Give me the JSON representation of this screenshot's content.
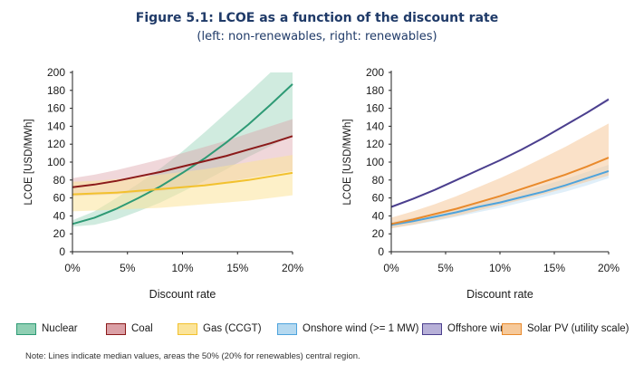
{
  "figure": {
    "title": "Figure 5.1: LCOE as a function of the discount rate",
    "subtitle": "(left: non-renewables, right: renewables)"
  },
  "chart_data": [
    {
      "type": "area",
      "xlabel": "Discount rate",
      "ylabel": "LCOE [USD/MWh]",
      "x": [
        0,
        2,
        4,
        6,
        8,
        10,
        12,
        14,
        16,
        18,
        20
      ],
      "xlim": [
        0,
        20
      ],
      "ylim": [
        0,
        200
      ],
      "xticks": [
        "0%",
        "5%",
        "10%",
        "15%",
        "20%"
      ],
      "yticks": [
        "0",
        "20",
        "40",
        "60",
        "80",
        "100",
        "120",
        "140",
        "160",
        "180",
        "200"
      ],
      "grid": false,
      "series": [
        {
          "name": "Nuclear",
          "color": "#2e9a75",
          "fill": "#8fcfb3",
          "median": [
            31,
            38,
            48,
            60,
            73,
            88,
            104,
            122,
            142,
            164,
            187
          ],
          "low": [
            28,
            30,
            36,
            45,
            55,
            67,
            79,
            92,
            106,
            118,
            130
          ],
          "high": [
            35,
            45,
            60,
            76,
            93,
            112,
            133,
            155,
            177,
            200,
            200
          ]
        },
        {
          "name": "Coal",
          "color": "#8b1a1a",
          "fill": "#dba0a6",
          "median": [
            72,
            75,
            79,
            84,
            89,
            95,
            101,
            107,
            114,
            121,
            129
          ],
          "low": [
            62,
            63,
            64,
            66,
            68,
            71,
            74,
            78,
            82,
            86,
            90
          ],
          "high": [
            82,
            86,
            91,
            97,
            103,
            110,
            117,
            124,
            132,
            140,
            148
          ]
        },
        {
          "name": "Gas (CCGT)",
          "color": "#f2c12e",
          "fill": "#fbe49a",
          "median": [
            64,
            65,
            66,
            68,
            70,
            72,
            74,
            77,
            80,
            84,
            88
          ],
          "low": [
            45,
            46,
            47,
            48,
            49,
            51,
            53,
            55,
            57,
            60,
            63
          ],
          "high": [
            78,
            79,
            81,
            83,
            86,
            89,
            92,
            96,
            100,
            104,
            108
          ]
        }
      ]
    },
    {
      "type": "area",
      "xlabel": "Discount rate",
      "ylabel": "LCOE [USD/MWh]",
      "x": [
        0,
        2,
        4,
        6,
        8,
        10,
        12,
        14,
        16,
        18,
        20
      ],
      "xlim": [
        0,
        20
      ],
      "ylim": [
        0,
        200
      ],
      "xticks": [
        "0%",
        "5%",
        "10%",
        "15%",
        "20%"
      ],
      "yticks": [
        "0",
        "20",
        "40",
        "60",
        "80",
        "100",
        "120",
        "140",
        "160",
        "180",
        "200"
      ],
      "grid": false,
      "series": [
        {
          "name": "Onshore wind (>= 1 MW)",
          "color": "#4ea3dc",
          "fill": "#b5d9f0",
          "median": [
            30,
            34,
            39,
            44,
            50,
            55,
            61,
            67,
            74,
            82,
            90
          ],
          "low": [
            27,
            30,
            34,
            39,
            44,
            49,
            55,
            61,
            67,
            74,
            82
          ],
          "high": [
            33,
            38,
            43,
            49,
            55,
            61,
            67,
            74,
            81,
            89,
            97
          ]
        },
        {
          "name": "Offshore wind",
          "color": "#4b3f8e",
          "fill": "#b7b0d8",
          "median": [
            50,
            59,
            69,
            80,
            91,
            102,
            114,
            127,
            141,
            155,
            170
          ],
          "low": [
            49,
            58,
            68,
            79,
            90,
            101,
            113,
            126,
            140,
            154,
            168
          ],
          "high": [
            51,
            60,
            70,
            81,
            92,
            103,
            115,
            128,
            142,
            156,
            172
          ]
        },
        {
          "name": "Solar PV (utility scale)",
          "color": "#e98a2c",
          "fill": "#f6c99a",
          "median": [
            31,
            36,
            42,
            48,
            55,
            62,
            70,
            78,
            86,
            95,
            105
          ],
          "low": [
            26,
            30,
            35,
            40,
            46,
            52,
            58,
            64,
            71,
            78,
            85
          ],
          "high": [
            38,
            45,
            53,
            62,
            72,
            82,
            93,
            105,
            117,
            130,
            143
          ]
        }
      ]
    }
  ],
  "legend": [
    {
      "label": "Nuclear",
      "color": "#2e9a75",
      "fill": "#8fcfb3"
    },
    {
      "label": "Coal",
      "color": "#8b1a1a",
      "fill": "#dba0a6"
    },
    {
      "label": "Gas (CCGT)",
      "color": "#f2c12e",
      "fill": "#fbe49a"
    },
    {
      "label": "Onshore wind (>= 1 MW)",
      "color": "#4ea3dc",
      "fill": "#b5d9f0"
    },
    {
      "label": "Offshore wind",
      "color": "#4b3f8e",
      "fill": "#b7b0d8"
    },
    {
      "label": "Solar PV (utility scale)",
      "color": "#e98a2c",
      "fill": "#f6c99a"
    }
  ],
  "note": "Note: Lines indicate median values, areas the 50% (20% for renewables) central region."
}
